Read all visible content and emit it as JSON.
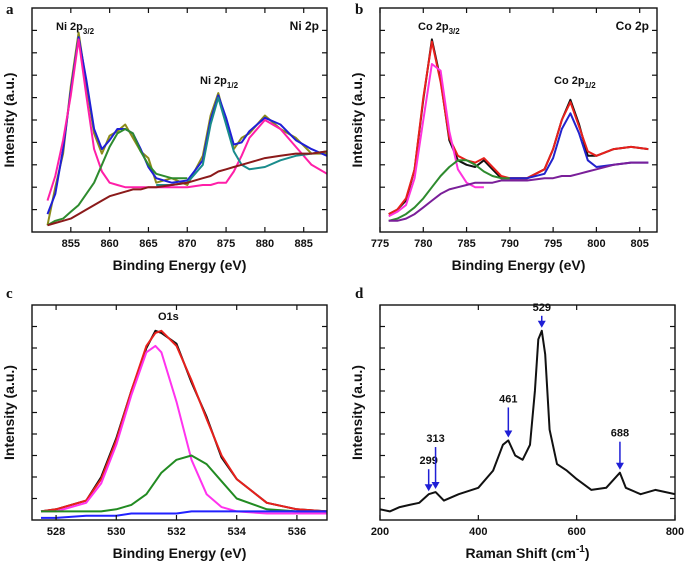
{
  "chart_data": [
    {
      "type": "line",
      "panel_label": "a",
      "title": "Ni 2p",
      "x_label": "Binding Energy (eV)",
      "y_label": "Intensity (a.u.)",
      "x": [
        852,
        853,
        854,
        855,
        856,
        857,
        858,
        859,
        860,
        861,
        862,
        863,
        864,
        865,
        866,
        868,
        870,
        872,
        873,
        874,
        875,
        876,
        877,
        878,
        880,
        882,
        884,
        886,
        888
      ],
      "series": [
        {
          "color": "#8c8c1a",
          "values": [
            3,
            20,
            35,
            65,
            89,
            66,
            44,
            35,
            43,
            45,
            48,
            42,
            36,
            33,
            22,
            24,
            21,
            34,
            52,
            62,
            49,
            37,
            42,
            44,
            52,
            46,
            42,
            35,
            35
          ]
        },
        {
          "color": "#1f1fd6",
          "values": [
            8,
            17,
            37,
            63,
            87,
            68,
            46,
            37,
            41,
            46,
            46,
            44,
            37,
            29,
            24,
            22,
            23,
            32,
            50,
            61,
            51,
            39,
            40,
            45,
            51,
            48,
            41,
            37,
            34
          ]
        },
        {
          "color": "#ff1fa8",
          "values": [
            14,
            25,
            41,
            61,
            86,
            61,
            37,
            27,
            22,
            21,
            20,
            20,
            20,
            20,
            20,
            20,
            20,
            21,
            21,
            22,
            22,
            27,
            34,
            42,
            50,
            46,
            38,
            30,
            26
          ]
        },
        {
          "color": "#2e8b2e",
          "values": [
            3,
            5,
            6,
            9,
            12,
            17,
            22,
            30,
            38,
            44,
            46,
            44,
            36,
            30,
            26,
            24,
            24,
            null,
            null,
            null,
            null,
            null,
            null,
            null,
            null,
            null,
            null,
            null,
            null
          ]
        },
        {
          "color": "#1a8c8c",
          "values": [
            null,
            null,
            null,
            null,
            null,
            null,
            null,
            null,
            null,
            null,
            null,
            null,
            null,
            null,
            21,
            21,
            22,
            30,
            48,
            60,
            48,
            36,
            30,
            28,
            29,
            32,
            34,
            35,
            36
          ]
        },
        {
          "color": "#8b1a1a",
          "values": [
            3,
            4,
            5,
            6,
            8,
            10,
            12,
            14,
            16,
            17,
            18,
            19,
            19,
            20,
            20,
            21,
            22,
            24,
            25,
            27,
            28,
            29,
            30,
            31,
            33,
            34,
            35,
            35,
            36
          ]
        }
      ],
      "annotations": [
        {
          "text": "Ni 2p",
          "sub": "3/2"
        },
        {
          "text": "Ni 2p",
          "sub": "1/2"
        }
      ],
      "xlim": [
        850,
        888
      ],
      "ylim": [
        0,
        100
      ],
      "xticks": [
        855,
        860,
        865,
        870,
        875,
        880,
        885
      ]
    },
    {
      "type": "line",
      "panel_label": "b",
      "title": "Co 2p",
      "x_label": "Binding Energy (eV)",
      "y_label": "Intensity (a.u.)",
      "x": [
        776,
        777,
        778,
        779,
        780,
        781,
        782,
        783,
        784,
        785,
        786,
        787,
        788,
        789,
        790,
        792,
        794,
        795,
        796,
        797,
        798,
        799,
        800,
        802,
        804,
        806
      ],
      "series": [
        {
          "color": "#111111",
          "values": [
            8,
            10,
            14,
            28,
            59,
            86,
            68,
            41,
            32,
            30,
            29,
            32,
            28,
            24,
            24,
            24,
            28,
            37,
            50,
            59,
            48,
            34,
            34,
            37,
            38,
            37
          ]
        },
        {
          "color": "#e8201c",
          "values": [
            8,
            10,
            15,
            28,
            60,
            85,
            67,
            42,
            34,
            32,
            31,
            33,
            29,
            25,
            24,
            24,
            28,
            37,
            50,
            58,
            47,
            36,
            34,
            37,
            38,
            37
          ]
        },
        {
          "color": "#ff33dd",
          "values": [
            7,
            9,
            12,
            24,
            50,
            75,
            72,
            45,
            28,
            22,
            20,
            20,
            null,
            null,
            null,
            null,
            null,
            null,
            null,
            null,
            null,
            null,
            null,
            null,
            null,
            null
          ]
        },
        {
          "color": "#2e8b2e",
          "values": [
            5,
            6,
            8,
            11,
            15,
            20,
            25,
            29,
            32,
            32,
            30,
            27,
            25,
            24,
            24,
            null,
            null,
            null,
            null,
            null,
            null,
            null,
            null,
            null,
            null,
            null
          ]
        },
        {
          "color": "#2222cc",
          "values": [
            null,
            null,
            null,
            null,
            null,
            null,
            null,
            null,
            null,
            null,
            null,
            null,
            null,
            null,
            24,
            24,
            26,
            33,
            46,
            53,
            44,
            32,
            29,
            30,
            31,
            31
          ]
        },
        {
          "color": "#7a1f99",
          "values": [
            5,
            5,
            6,
            8,
            11,
            14,
            17,
            19,
            20,
            21,
            22,
            22,
            22,
            23,
            23,
            23,
            24,
            24,
            25,
            25,
            26,
            27,
            28,
            30,
            31,
            31
          ]
        }
      ],
      "annotations": [
        {
          "text": "Co 2p",
          "sub": "3/2"
        },
        {
          "text": "Co 2p",
          "sub": "1/2"
        }
      ],
      "xlim": [
        775,
        807
      ],
      "ylim": [
        0,
        100
      ],
      "xticks": [
        775,
        780,
        785,
        790,
        795,
        800,
        805
      ]
    },
    {
      "type": "line",
      "panel_label": "c",
      "x_label": "Binding Energy (eV)",
      "y_label": "Intensity (a.u.)",
      "x": [
        527.5,
        528,
        529,
        529.5,
        530,
        530.5,
        531,
        531.3,
        531.5,
        532,
        532.5,
        533,
        533.5,
        534,
        535,
        536,
        537
      ],
      "series": [
        {
          "color": "#111111",
          "values": [
            4,
            5,
            9,
            20,
            38,
            60,
            80,
            88,
            87,
            82,
            64,
            48,
            29,
            19,
            8,
            5,
            4
          ]
        },
        {
          "color": "#e8201c",
          "values": [
            4,
            5,
            9,
            19,
            37,
            60,
            81,
            87,
            88,
            81,
            65,
            47,
            30,
            19,
            8,
            5,
            4
          ]
        },
        {
          "color": "#ff33ee",
          "values": [
            4,
            4,
            8,
            17,
            35,
            58,
            78,
            81,
            78,
            55,
            28,
            12,
            6,
            4,
            3,
            3,
            3
          ]
        },
        {
          "color": "#228b22",
          "values": [
            4,
            4,
            4,
            4,
            5,
            7,
            12,
            18,
            22,
            28,
            30,
            26,
            18,
            10,
            5,
            4,
            4
          ]
        },
        {
          "color": "#2222ff",
          "values": [
            1,
            1,
            2,
            2,
            2,
            3,
            3,
            3,
            3,
            3,
            4,
            4,
            4,
            4,
            4,
            4,
            4
          ]
        }
      ],
      "annotations": [
        {
          "text": "O1s"
        }
      ],
      "xlim": [
        527.2,
        537
      ],
      "ylim": [
        0,
        100
      ],
      "xticks": [
        528,
        530,
        532,
        534,
        536
      ]
    },
    {
      "type": "line",
      "panel_label": "d",
      "x_label": {
        "text": "Raman Shift (cm",
        "sup": "-1",
        "tail": ")"
      },
      "y_label": "Intensity (a.u.)",
      "x": [
        200,
        220,
        240,
        260,
        280,
        299,
        313,
        330,
        360,
        400,
        430,
        450,
        461,
        475,
        490,
        505,
        515,
        522,
        529,
        536,
        545,
        560,
        580,
        600,
        630,
        660,
        688,
        700,
        730,
        760,
        800
      ],
      "series": [
        {
          "color": "#111111",
          "values": [
            5,
            4,
            6,
            7,
            8,
            12,
            13,
            9,
            12,
            15,
            23,
            35,
            37,
            30,
            28,
            35,
            60,
            84,
            88,
            77,
            42,
            26,
            23,
            19,
            14,
            15,
            22,
            15,
            12,
            14,
            12
          ]
        }
      ],
      "annotations": [
        299,
        313,
        461,
        529,
        688
      ],
      "xlim": [
        200,
        800
      ],
      "ylim": [
        0,
        100
      ],
      "xticks": [
        200,
        400,
        600,
        800
      ]
    }
  ]
}
